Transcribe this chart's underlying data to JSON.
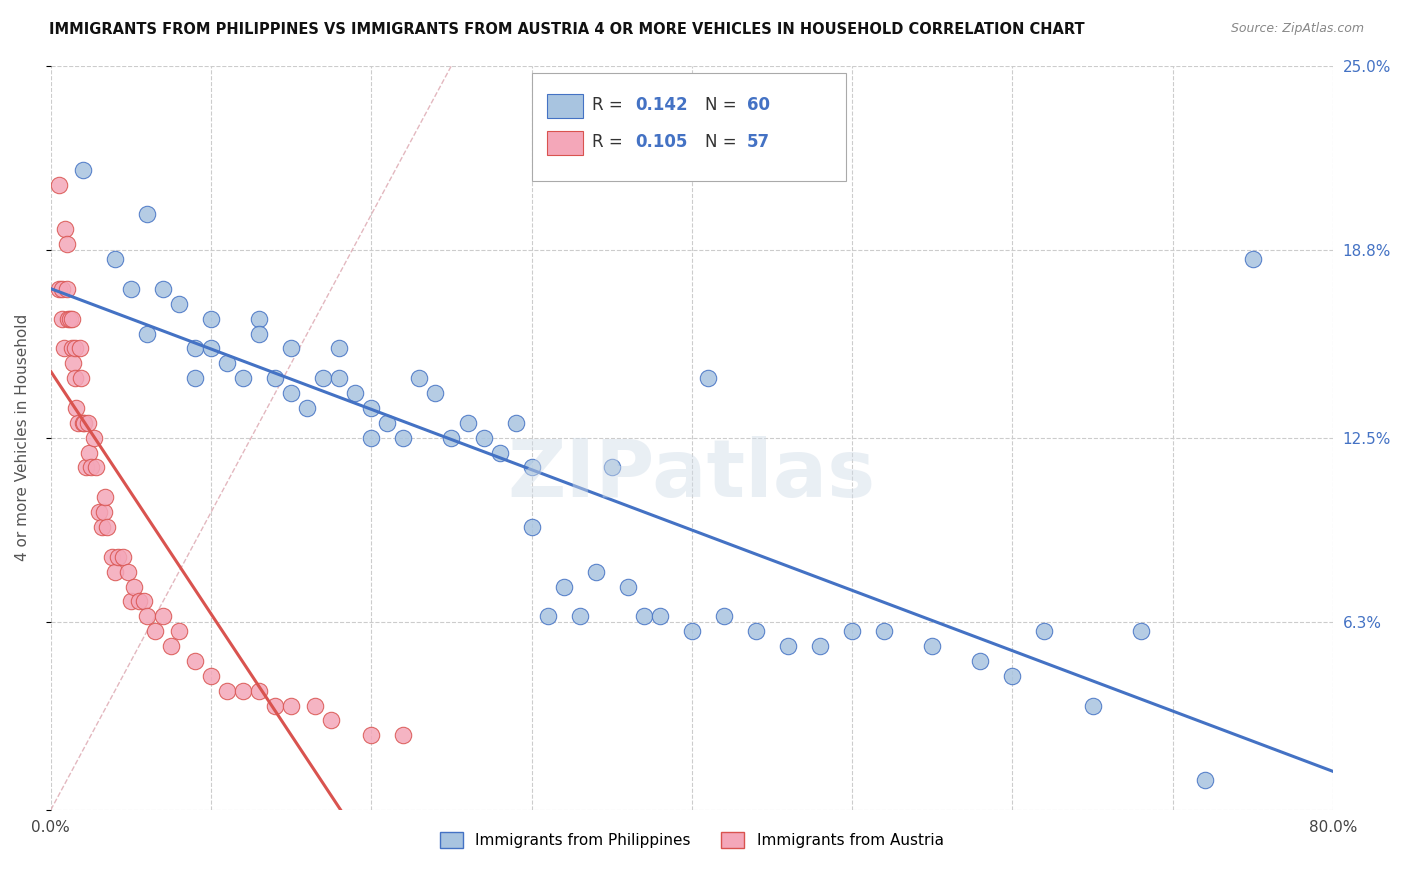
{
  "title": "IMMIGRANTS FROM PHILIPPINES VS IMMIGRANTS FROM AUSTRIA 4 OR MORE VEHICLES IN HOUSEHOLD CORRELATION CHART",
  "source": "Source: ZipAtlas.com",
  "ylabel": "4 or more Vehicles in Household",
  "xlim": [
    0.0,
    0.8
  ],
  "ylim": [
    0.0,
    0.25
  ],
  "color_philippines": "#a8c4e0",
  "color_austria": "#f4a7b9",
  "color_line_philippines": "#4472C4",
  "color_line_austria": "#D9534F",
  "color_diagonal": "#e0b0b8",
  "watermark": "ZIPatlas",
  "philippines_x": [
    0.02,
    0.04,
    0.05,
    0.06,
    0.06,
    0.07,
    0.08,
    0.09,
    0.09,
    0.1,
    0.1,
    0.11,
    0.12,
    0.13,
    0.13,
    0.14,
    0.15,
    0.15,
    0.16,
    0.17,
    0.18,
    0.18,
    0.19,
    0.2,
    0.2,
    0.21,
    0.22,
    0.23,
    0.24,
    0.25,
    0.26,
    0.27,
    0.28,
    0.29,
    0.3,
    0.3,
    0.31,
    0.32,
    0.33,
    0.34,
    0.35,
    0.36,
    0.37,
    0.38,
    0.4,
    0.41,
    0.42,
    0.44,
    0.46,
    0.48,
    0.5,
    0.52,
    0.55,
    0.58,
    0.6,
    0.62,
    0.65,
    0.68,
    0.72,
    0.75
  ],
  "philippines_y": [
    0.215,
    0.185,
    0.175,
    0.2,
    0.16,
    0.175,
    0.17,
    0.155,
    0.145,
    0.165,
    0.155,
    0.15,
    0.145,
    0.165,
    0.16,
    0.145,
    0.155,
    0.14,
    0.135,
    0.145,
    0.155,
    0.145,
    0.14,
    0.135,
    0.125,
    0.13,
    0.125,
    0.145,
    0.14,
    0.125,
    0.13,
    0.125,
    0.12,
    0.13,
    0.115,
    0.095,
    0.065,
    0.075,
    0.065,
    0.08,
    0.115,
    0.075,
    0.065,
    0.065,
    0.06,
    0.145,
    0.065,
    0.06,
    0.055,
    0.055,
    0.06,
    0.06,
    0.055,
    0.05,
    0.045,
    0.06,
    0.035,
    0.06,
    0.01,
    0.185
  ],
  "austria_x": [
    0.005,
    0.005,
    0.007,
    0.007,
    0.008,
    0.009,
    0.01,
    0.01,
    0.011,
    0.012,
    0.013,
    0.013,
    0.014,
    0.015,
    0.015,
    0.016,
    0.017,
    0.018,
    0.019,
    0.02,
    0.021,
    0.022,
    0.023,
    0.024,
    0.025,
    0.027,
    0.028,
    0.03,
    0.032,
    0.033,
    0.034,
    0.035,
    0.038,
    0.04,
    0.042,
    0.045,
    0.048,
    0.05,
    0.052,
    0.055,
    0.058,
    0.06,
    0.065,
    0.07,
    0.075,
    0.08,
    0.09,
    0.1,
    0.11,
    0.12,
    0.13,
    0.14,
    0.15,
    0.165,
    0.175,
    0.2,
    0.22
  ],
  "austria_y": [
    0.21,
    0.175,
    0.175,
    0.165,
    0.155,
    0.195,
    0.175,
    0.19,
    0.165,
    0.165,
    0.165,
    0.155,
    0.15,
    0.155,
    0.145,
    0.135,
    0.13,
    0.155,
    0.145,
    0.13,
    0.13,
    0.115,
    0.13,
    0.12,
    0.115,
    0.125,
    0.115,
    0.1,
    0.095,
    0.1,
    0.105,
    0.095,
    0.085,
    0.08,
    0.085,
    0.085,
    0.08,
    0.07,
    0.075,
    0.07,
    0.07,
    0.065,
    0.06,
    0.065,
    0.055,
    0.06,
    0.05,
    0.045,
    0.04,
    0.04,
    0.04,
    0.035,
    0.035,
    0.035,
    0.03,
    0.025,
    0.025
  ]
}
